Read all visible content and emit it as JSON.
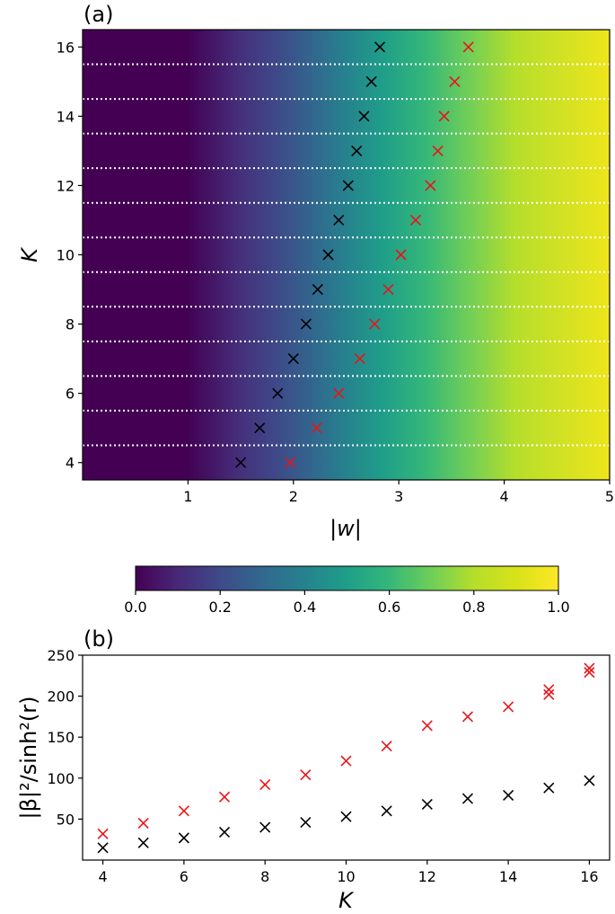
{
  "chart_data": [
    {
      "type": "heatmap",
      "panel_label": "(a)",
      "xlabel": "|w|",
      "ylabel": "K",
      "xlim": [
        0.0,
        5.0
      ],
      "ylim": [
        3.5,
        16.5
      ],
      "xticks": [
        1,
        2,
        3,
        4,
        5
      ],
      "yticks": [
        4,
        6,
        8,
        10,
        12,
        14,
        16
      ],
      "colormap": "viridis",
      "separator_lines_at_K": [
        4.5,
        5.5,
        6.5,
        7.5,
        8.5,
        9.5,
        10.5,
        11.5,
        12.5,
        13.5,
        14.5,
        15.5
      ],
      "colorbar": {
        "range": [
          0.0,
          1.0
        ],
        "tick_labels": [
          "0.0",
          "0.2",
          "0.4",
          "0.6",
          "0.8",
          "1.0"
        ],
        "ticks": [
          0.0,
          0.2,
          0.4,
          0.6,
          0.8,
          1.0
        ]
      },
      "series": [
        {
          "color": "#000000",
          "marker": "x",
          "x": [
            1.5,
            1.68,
            1.85,
            2.0,
            2.12,
            2.23,
            2.33,
            2.43,
            2.52,
            2.6,
            2.67,
            2.74,
            2.82
          ],
          "y": [
            4,
            5,
            6,
            7,
            8,
            9,
            10,
            11,
            12,
            13,
            14,
            15,
            16
          ]
        },
        {
          "color": "#e8141a",
          "marker": "x",
          "x": [
            1.97,
            2.22,
            2.43,
            2.63,
            2.77,
            2.9,
            3.02,
            3.16,
            3.3,
            3.37,
            3.43,
            3.53,
            3.66
          ],
          "y": [
            4,
            5,
            6,
            7,
            8,
            9,
            10,
            11,
            12,
            13,
            14,
            15,
            16
          ]
        }
      ]
    },
    {
      "type": "scatter",
      "panel_label": "(b)",
      "xlabel": "K",
      "ylabel": "|β|²/sinh²(r)",
      "xlim": [
        3.5,
        16.5
      ],
      "ylim": [
        0,
        250
      ],
      "xticks": [
        4,
        6,
        8,
        10,
        12,
        14,
        16
      ],
      "yticks": [
        50,
        100,
        150,
        200,
        250
      ],
      "series": [
        {
          "color": "#e8141a",
          "marker": "x",
          "x": [
            4,
            5,
            6,
            7,
            8,
            9,
            10,
            11,
            12,
            13,
            14,
            15,
            15,
            16,
            16
          ],
          "y": [
            32,
            45,
            60,
            77,
            92,
            104,
            121,
            139,
            164,
            175,
            187,
            202,
            208,
            229,
            234
          ]
        },
        {
          "color": "#000000",
          "marker": "x",
          "x": [
            4,
            5,
            6,
            7,
            8,
            9,
            10,
            11,
            12,
            13,
            14,
            15,
            16
          ],
          "y": [
            15,
            21,
            27,
            34,
            40,
            46,
            53,
            60,
            68,
            75,
            79,
            88,
            97
          ]
        }
      ]
    }
  ]
}
